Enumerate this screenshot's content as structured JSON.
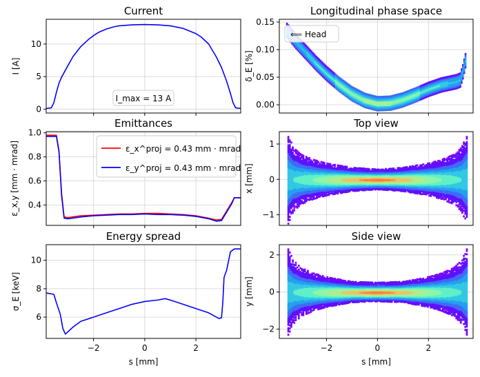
{
  "chart_data": [
    {
      "id": "current",
      "type": "line",
      "title": "Current",
      "xlabel": "",
      "ylabel": "I [A]",
      "xlim": [
        -3.85,
        3.75
      ],
      "ylim": [
        -0.6,
        13.8
      ],
      "xticks": [
        -2,
        0,
        2
      ],
      "yticks": [
        0,
        5,
        10
      ],
      "show_xticklabels": false,
      "grid": true,
      "annotation": "I_max = 13 A",
      "annotation_position": "bottom-center",
      "series": [
        {
          "color": "#0000ff",
          "x": [
            -3.85,
            -3.65,
            -3.55,
            -3.45,
            -3.35,
            -3.25,
            -3.0,
            -2.8,
            -2.5,
            -2.2,
            -2.0,
            -1.8,
            -1.5,
            -1.2,
            -1.0,
            -0.5,
            0.0,
            0.5,
            1.0,
            1.5,
            2.0,
            2.2,
            2.5,
            2.8,
            3.0,
            3.2,
            3.35,
            3.45,
            3.55,
            3.75
          ],
          "y": [
            0.1,
            0.2,
            1.0,
            2.6,
            4.0,
            4.9,
            6.7,
            8.1,
            9.6,
            10.7,
            11.3,
            11.8,
            12.3,
            12.65,
            12.8,
            12.95,
            13.0,
            12.95,
            12.8,
            12.4,
            11.6,
            11.1,
            10.0,
            8.0,
            6.4,
            4.3,
            2.4,
            1.0,
            0.2,
            0.1
          ]
        }
      ]
    },
    {
      "id": "longitudinal",
      "type": "heatmap",
      "title": "Longitudinal phase space",
      "xlabel": "",
      "ylabel": "δ_E [%]",
      "xlim": [
        -3.85,
        3.75
      ],
      "ylim": [
        -0.015,
        0.155
      ],
      "xticks": [
        -2,
        0,
        2
      ],
      "yticks": [
        0.0,
        0.05,
        0.1,
        0.15
      ],
      "ytick_labels": [
        "0.00",
        "0.05",
        "0.10",
        "0.15"
      ],
      "show_xticklabels": false,
      "grid": true,
      "legend": "⟸ Head",
      "legend_position": "top-left",
      "curve": {
        "x": [
          -3.55,
          -3.2,
          -2.8,
          -2.4,
          -2.0,
          -1.5,
          -1.0,
          -0.5,
          0.0,
          0.5,
          1.0,
          1.5,
          2.0,
          2.5,
          2.9,
          3.1,
          3.25,
          3.35,
          3.45
        ],
        "y": [
          0.135,
          0.115,
          0.095,
          0.075,
          0.057,
          0.037,
          0.02,
          0.008,
          0.002,
          0.003,
          0.009,
          0.018,
          0.028,
          0.036,
          0.04,
          0.042,
          0.045,
          0.06,
          0.08
        ]
      }
    },
    {
      "id": "emittances",
      "type": "line",
      "title": "Emittances",
      "xlabel": "",
      "ylabel": "ε_x,y [mm · mrad]",
      "xlim": [
        -3.85,
        3.75
      ],
      "ylim": [
        0.23,
        1.01
      ],
      "xticks": [
        -2,
        0,
        2
      ],
      "yticks": [
        0.4,
        0.6,
        0.8,
        1.0
      ],
      "ytick_labels": [
        "0.4",
        "0.6",
        "0.8",
        "1.0"
      ],
      "show_xticklabels": false,
      "grid": true,
      "legend_position": "top-right",
      "series": [
        {
          "name": "ε_x^proj = 0.43 mm · mrad",
          "color": "#ff0000",
          "x": [
            -3.85,
            -3.45,
            -3.35,
            -3.25,
            -3.15,
            -3.0,
            -2.5,
            -2.0,
            -1.5,
            -1.0,
            -0.5,
            0.0,
            0.5,
            1.0,
            1.5,
            2.0,
            2.5,
            2.8,
            3.0,
            3.2,
            3.4,
            3.5,
            3.75
          ],
          "y": [
            0.98,
            0.98,
            0.85,
            0.5,
            0.3,
            0.295,
            0.31,
            0.315,
            0.32,
            0.325,
            0.325,
            0.33,
            0.33,
            0.325,
            0.32,
            0.31,
            0.29,
            0.275,
            0.28,
            0.35,
            0.42,
            0.46,
            0.46
          ]
        },
        {
          "name": "ε_y^proj = 0.43 mm · mrad",
          "color": "#0000ff",
          "x": [
            -3.85,
            -3.45,
            -3.35,
            -3.25,
            -3.15,
            -3.0,
            -2.5,
            -2.0,
            -1.5,
            -1.0,
            -0.5,
            0.0,
            0.5,
            1.0,
            1.5,
            2.0,
            2.5,
            2.8,
            3.0,
            3.2,
            3.4,
            3.5,
            3.75
          ],
          "y": [
            0.97,
            0.97,
            0.84,
            0.48,
            0.29,
            0.285,
            0.3,
            0.31,
            0.315,
            0.32,
            0.32,
            0.325,
            0.32,
            0.32,
            0.315,
            0.305,
            0.285,
            0.265,
            0.27,
            0.34,
            0.41,
            0.46,
            0.46
          ]
        }
      ]
    },
    {
      "id": "topview",
      "type": "heatmap",
      "title": "Top view",
      "xlabel": "",
      "ylabel": "x [mm]",
      "xlim": [
        -3.85,
        3.75
      ],
      "ylim": [
        -1.3,
        1.35
      ],
      "xticks": [
        -2,
        0,
        2
      ],
      "yticks": [
        -1,
        0,
        1
      ],
      "show_xticklabels": false,
      "grid": true,
      "halfwidth": {
        "x": [
          -3.5,
          -3.3,
          -3.0,
          -2.5,
          -2.0,
          -1.0,
          0.0,
          1.0,
          2.0,
          2.5,
          3.0,
          3.3,
          3.5
        ],
        "y": [
          1.25,
          0.9,
          0.7,
          0.55,
          0.45,
          0.33,
          0.28,
          0.33,
          0.45,
          0.55,
          0.7,
          0.9,
          1.25
        ]
      }
    },
    {
      "id": "energyspread",
      "type": "line",
      "title": "Energy spread",
      "xlabel": "s [mm]",
      "ylabel": "σ_E [keV]",
      "xlim": [
        -3.85,
        3.75
      ],
      "ylim": [
        4.5,
        11.1
      ],
      "xticks": [
        -2,
        0,
        2
      ],
      "yticks": [
        6,
        8,
        10
      ],
      "show_xticklabels": true,
      "grid": true,
      "series": [
        {
          "color": "#0000ff",
          "x": [
            -3.85,
            -3.55,
            -3.45,
            -3.3,
            -3.2,
            -3.1,
            -2.8,
            -2.5,
            -2.0,
            -1.5,
            -1.0,
            -0.5,
            0.0,
            0.5,
            0.8,
            1.0,
            1.5,
            2.0,
            2.5,
            2.8,
            2.9,
            3.0,
            3.05,
            3.1,
            3.2,
            3.35,
            3.5,
            3.75
          ],
          "y": [
            7.7,
            7.6,
            7.0,
            6.2,
            5.2,
            4.8,
            5.3,
            5.7,
            6.0,
            6.3,
            6.6,
            6.9,
            7.1,
            7.2,
            7.3,
            7.2,
            6.9,
            6.6,
            6.3,
            6.0,
            5.9,
            5.95,
            7.0,
            8.8,
            9.3,
            10.6,
            10.8,
            10.8
          ]
        }
      ]
    },
    {
      "id": "sideview",
      "type": "heatmap",
      "title": "Side view",
      "xlabel": "s [mm]",
      "ylabel": "y [mm]",
      "xlim": [
        -3.85,
        3.75
      ],
      "ylim": [
        -2.5,
        2.55
      ],
      "xticks": [
        -2,
        0,
        2
      ],
      "yticks": [
        -2,
        0,
        2
      ],
      "show_xticklabels": true,
      "grid": true,
      "halfwidth": {
        "x": [
          -3.5,
          -3.3,
          -3.0,
          -2.5,
          -2.0,
          -1.0,
          0.0,
          1.0,
          2.0,
          2.5,
          3.0,
          3.3,
          3.5
        ],
        "y": [
          2.3,
          1.7,
          1.3,
          1.0,
          0.8,
          0.55,
          0.5,
          0.55,
          0.8,
          1.0,
          1.3,
          1.7,
          2.3
        ]
      }
    }
  ]
}
